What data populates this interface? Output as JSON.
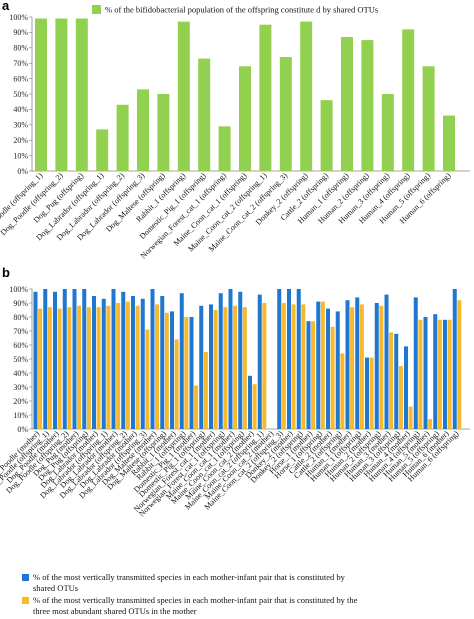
{
  "chart_data": [
    {
      "panel_label": "a",
      "type": "bar",
      "legend": [
        "% of the bifidobacterial population of the offspring constitute d by shared OTUs"
      ],
      "colors": [
        "#92d050"
      ],
      "ylim": [
        0,
        100
      ],
      "yticks": [
        "0%",
        "10%",
        "20%",
        "30%",
        "40%",
        "50%",
        "60%",
        "70%",
        "80%",
        "90%",
        "100%"
      ],
      "categories": [
        "Dog_Poodle (offspring_1)",
        "Dog_Poodle (offspring_2)",
        "Dog_Pug (offspring)",
        "Dog_Labrador (offspring_1)",
        "Dog_Labrador (offspring_2)",
        "Dog_Labrador (offspring_3)",
        "Dog_Maltese (offspring)",
        "Rabbit_1 (offspring)",
        "Domestic_Pig_1 (offspring)",
        "Norwegian_Forest_cat_1 (offspring)",
        "Maine_Coon_cat_1 (offspring)",
        "Maine_Coon_cat_2 (offspring_1)",
        "Maine_Coon_cat_2 (offspring_3)",
        "Donkey_2 (offspring)",
        "Cattle_2 (offspring)",
        "Human_1 (offspring)",
        "Human_2 (offspring)",
        "Human_3 (offspring)",
        "Human_4 (offspring)",
        "Human_5 (offspring)",
        "Human_6 (offspring)"
      ],
      "series": [
        {
          "values": [
            99,
            99,
            99,
            27,
            43,
            53,
            50,
            97,
            73,
            29,
            68,
            95,
            74,
            97,
            46,
            87,
            85,
            50,
            92,
            68,
            36
          ]
        }
      ]
    },
    {
      "panel_label": "b",
      "type": "bar",
      "legend": [
        "% of the most vertically transmitted species in each mother-infant pair that is constituted by shared OTUs",
        "% of the most vertically transmitted species in each mother-infant pair that is constituted by the three most abundant shared OTUs in the mother"
      ],
      "colors": [
        "#1f77d0",
        "#f5b82e"
      ],
      "ylim": [
        0,
        100
      ],
      "yticks": [
        "0%",
        "10%",
        "20%",
        "30%",
        "40%",
        "50%",
        "60%",
        "70%",
        "80%",
        "90%",
        "100%"
      ],
      "categories": [
        "Dog_Poodle (mother)",
        "Dog_Poodle (offspring_1)",
        "Dog_Poodle (mother)",
        "Dog_Poodle (offspring_2)",
        "Dog_Pug (mother)",
        "Dog_Pug (offspring)",
        "Dog_Labrador (mother)",
        "Dog_Labrador (offspring_1)",
        "Dog_Labrador (mother)",
        "Dog_Labrador (offspring_2)",
        "Dog_Labrador (mother)",
        "Dog_Labrador (offspring_3)",
        "Dog_Maltese (mother)",
        "Dog_Maltese (offspring)",
        "Rabbit_1 (mother)",
        "Rabbit_1 (offspring)",
        "Domestic_Pig_1 (mother)",
        "Domestic_Pig_1 (offspring)",
        "Norwegian_Forest_cat_1 (mother)",
        "Norwegian_Forest_cat_1 (offspring)",
        "Maine_Coon_cat_1 (mother)",
        "Maine_Coon_cat_1 (offspring)",
        "Maine_Coon_cat_2 (mother)",
        "Maine_Coon_cat_2 (offspring_1)",
        "Maine_Coon_cat_2 (mother)",
        "Maine_Coon_cat_2 (offspring_3)",
        "Donkey_2 (mother)",
        "Donkey_2 (offspring)",
        "Horse_1 (mother)",
        "Horse_1 (offspring)",
        "Cattle_2 (mother)",
        "Cattle_2 (offspring)",
        "Human_1 (mother)",
        "Human_1 (offspring)",
        "Human_2 (mother)",
        "Human_2 (offspring)",
        "Human_3 (mother)",
        "Human_3 (offspring)",
        "Human_4 (mother)",
        "Human_4 (offspring)",
        "Human_5 (mother)",
        "Human_5 (offspring)",
        "Human_6 (mother)",
        "Human_6 (offspring)"
      ],
      "series": [
        {
          "values": [
            98,
            100,
            98,
            100,
            100,
            100,
            95,
            93,
            100,
            98,
            95,
            93,
            100,
            95,
            84,
            97,
            80,
            88,
            89,
            97,
            100,
            98,
            38,
            96,
            0,
            100,
            100,
            100,
            77,
            91,
            86,
            84,
            92,
            94,
            51,
            90,
            96,
            68,
            59,
            94,
            80,
            82,
            78,
            100
          ]
        },
        {
          "values": [
            86,
            87,
            86,
            87,
            88,
            87,
            87,
            88,
            90,
            91,
            88,
            71,
            89,
            83,
            64,
            80,
            31,
            55,
            85,
            87,
            88,
            87,
            32,
            90,
            0,
            90,
            89,
            89,
            77,
            91,
            73,
            54,
            87,
            89,
            51,
            88,
            69,
            45,
            16,
            78,
            7,
            78,
            78,
            92
          ]
        }
      ]
    }
  ]
}
